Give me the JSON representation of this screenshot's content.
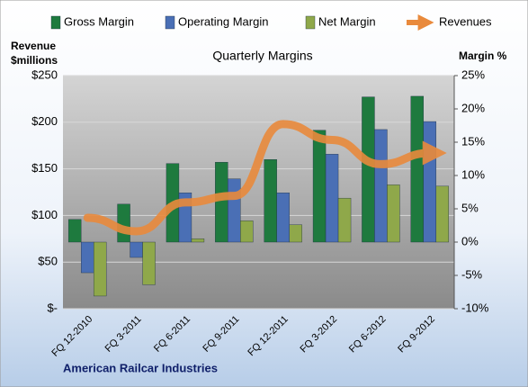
{
  "chart_data": {
    "type": "bar",
    "title": "Quarterly Margins",
    "ylabel": [
      "Revenue",
      "$millions"
    ],
    "y2label": "Margin %",
    "footer": "American Railcar Industries",
    "categories": [
      "FQ 12-2010",
      "FQ 3-2011",
      "FQ 6-2011",
      "FQ 9-2011",
      "FQ 12-2011",
      "FQ 3-2012",
      "FQ 6-2012",
      "FQ 9-2012"
    ],
    "series": [
      {
        "name": "Gross Margin",
        "color": "#1e7a3e",
        "axis": "y2",
        "values": [
          3.4,
          5.7,
          11.8,
          12.0,
          12.4,
          16.8,
          21.8,
          21.9
        ]
      },
      {
        "name": "Operating Margin",
        "color": "#4a6fb5",
        "axis": "y2",
        "values": [
          -4.6,
          -2.3,
          7.4,
          9.5,
          7.4,
          13.2,
          16.9,
          18.1
        ]
      },
      {
        "name": "Net Margin",
        "color": "#8fa84a",
        "axis": "y2",
        "values": [
          -8.1,
          -6.4,
          0.5,
          3.2,
          2.6,
          6.6,
          8.6,
          8.4
        ]
      },
      {
        "name": "Revenues",
        "color": "#e98a3c",
        "type": "line",
        "values": [
          97.5,
          83,
          114,
          121,
          198,
          181,
          155,
          167
        ]
      }
    ],
    "ylim": [
      0,
      250
    ],
    "yticks": [
      {
        "value": 0,
        "label": "$-"
      },
      {
        "value": 50,
        "label": "$50"
      },
      {
        "value": 100,
        "label": "$100"
      },
      {
        "value": 150,
        "label": "$150"
      },
      {
        "value": 200,
        "label": "$200"
      },
      {
        "value": 250,
        "label": "$250"
      }
    ],
    "y2lim": [
      -10,
      25
    ],
    "y2ticks": [
      {
        "value": -10,
        "label": "-10%"
      },
      {
        "value": -5,
        "label": "-5%"
      },
      {
        "value": 0,
        "label": "0%"
      },
      {
        "value": 5,
        "label": "5%"
      },
      {
        "value": 10,
        "label": "10%"
      },
      {
        "value": 15,
        "label": "15%"
      },
      {
        "value": 20,
        "label": "20%"
      },
      {
        "value": 25,
        "label": "25%"
      }
    ],
    "grid": true
  }
}
